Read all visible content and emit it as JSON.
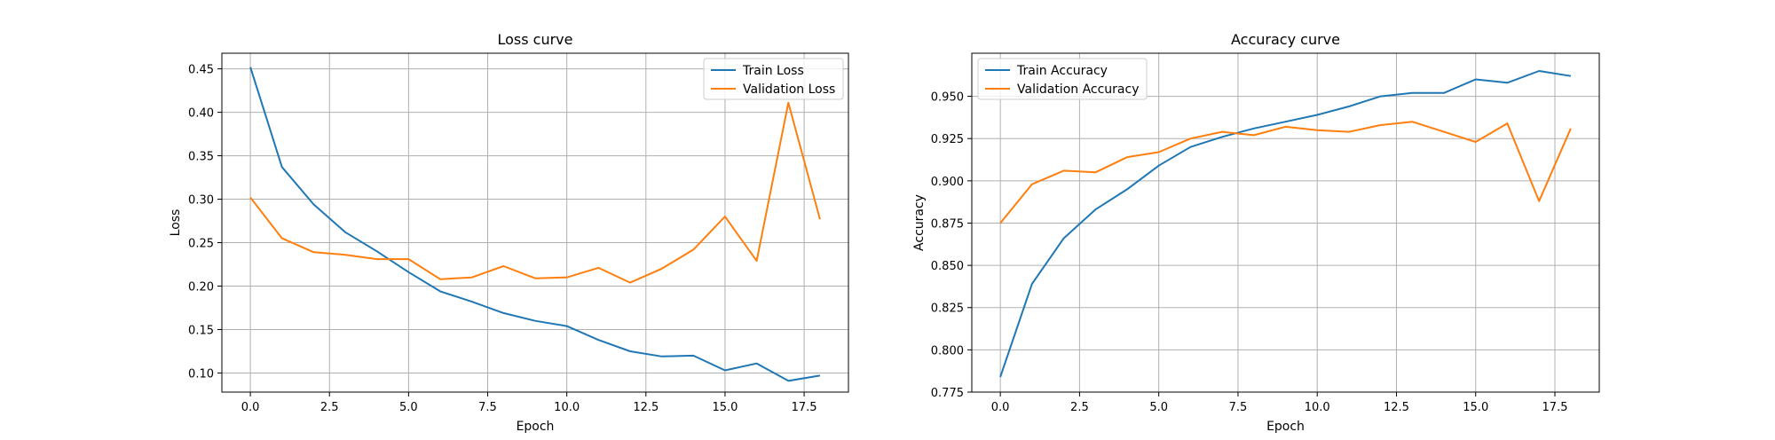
{
  "chart_data": [
    {
      "type": "line",
      "title": "Loss curve",
      "xlabel": "Epoch",
      "ylabel": "Loss",
      "xlim": [
        -0.9,
        18.9
      ],
      "ylim": [
        0.078,
        0.468
      ],
      "xticks": [
        0.0,
        2.5,
        5.0,
        7.5,
        10.0,
        12.5,
        15.0,
        17.5
      ],
      "xtick_labels": [
        "0.0",
        "2.5",
        "5.0",
        "7.5",
        "10.0",
        "12.5",
        "15.0",
        "17.5"
      ],
      "yticks": [
        0.1,
        0.15,
        0.2,
        0.25,
        0.3,
        0.35,
        0.4,
        0.45
      ],
      "ytick_labels": [
        "0.10",
        "0.15",
        "0.20",
        "0.25",
        "0.30",
        "0.35",
        "0.40",
        "0.45"
      ],
      "grid": true,
      "legend_position": "top-right",
      "x": [
        0,
        1,
        2,
        3,
        4,
        5,
        6,
        7,
        8,
        9,
        10,
        11,
        12,
        13,
        14,
        15,
        16,
        17,
        18
      ],
      "series": [
        {
          "name": "Train Loss",
          "color": "#1f77b4",
          "values": [
            0.452,
            0.337,
            0.294,
            0.262,
            0.24,
            0.216,
            0.194,
            0.182,
            0.169,
            0.16,
            0.154,
            0.138,
            0.125,
            0.119,
            0.12,
            0.103,
            0.111,
            0.091,
            0.097
          ]
        },
        {
          "name": "Validation Loss",
          "color": "#ff7f0e",
          "values": [
            0.302,
            0.255,
            0.239,
            0.236,
            0.231,
            0.231,
            0.208,
            0.21,
            0.223,
            0.209,
            0.21,
            0.221,
            0.204,
            0.22,
            0.242,
            0.28,
            0.229,
            0.411,
            0.277
          ]
        }
      ]
    },
    {
      "type": "line",
      "title": "Accuracy curve",
      "xlabel": "Epoch",
      "ylabel": "Accuracy",
      "xlim": [
        -0.9,
        18.9
      ],
      "ylim": [
        0.775,
        0.9755
      ],
      "xticks": [
        0.0,
        2.5,
        5.0,
        7.5,
        10.0,
        12.5,
        15.0,
        17.5
      ],
      "xtick_labels": [
        "0.0",
        "2.5",
        "5.0",
        "7.5",
        "10.0",
        "12.5",
        "15.0",
        "17.5"
      ],
      "yticks": [
        0.775,
        0.8,
        0.825,
        0.85,
        0.875,
        0.9,
        0.925,
        0.95
      ],
      "ytick_labels": [
        "0.775",
        "0.800",
        "0.825",
        "0.850",
        "0.875",
        "0.900",
        "0.925",
        "0.950"
      ],
      "grid": true,
      "legend_position": "top-left",
      "x": [
        0,
        1,
        2,
        3,
        4,
        5,
        6,
        7,
        8,
        9,
        10,
        11,
        12,
        13,
        14,
        15,
        16,
        17,
        18
      ],
      "series": [
        {
          "name": "Train Accuracy",
          "color": "#1f77b4",
          "values": [
            0.784,
            0.839,
            0.866,
            0.883,
            0.895,
            0.909,
            0.92,
            0.926,
            0.931,
            0.935,
            0.939,
            0.944,
            0.95,
            0.952,
            0.952,
            0.96,
            0.958,
            0.965,
            0.962
          ]
        },
        {
          "name": "Validation Accuracy",
          "color": "#ff7f0e",
          "values": [
            0.875,
            0.898,
            0.906,
            0.905,
            0.914,
            0.917,
            0.925,
            0.929,
            0.927,
            0.932,
            0.93,
            0.929,
            0.933,
            0.935,
            0.929,
            0.923,
            0.934,
            0.888,
            0.931
          ]
        }
      ]
    }
  ]
}
